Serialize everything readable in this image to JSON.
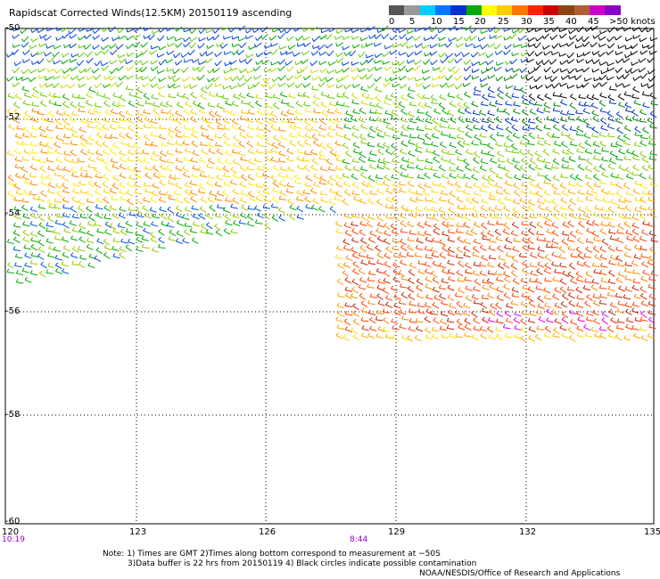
{
  "title": "Rapidscat Corrected Winds(12.5KM) 20150119 ascending",
  "legend": {
    "colors": [
      "#555555",
      "#9a9a9a",
      "#00ccff",
      "#0077ff",
      "#0033cc",
      "#00aa00",
      "#ffff00",
      "#ffcc00",
      "#ff7700",
      "#ff2200",
      "#cc0000",
      "#8b4513",
      "#b06030",
      "#cc00cc",
      "#8800cc"
    ],
    "labels": [
      "0",
      "5",
      "10",
      "15",
      "20",
      "25",
      "30",
      "35",
      "40",
      "45",
      ">50 knots"
    ]
  },
  "axes": {
    "lat_labels": [
      "-50",
      "-52",
      "-54",
      "-56",
      "-58",
      "-60"
    ],
    "lon_labels": [
      "120",
      "123",
      "126",
      "129",
      "132",
      "135"
    ],
    "time_labels": [
      "10:19",
      "8:44"
    ]
  },
  "notes": {
    "line1": "Note: 1) Times are GMT 2)Times along bottom correspond to measurement at −50S",
    "line2": "3)Data buffer is 22 hrs from 20150119 4) Black circles indicate possible contamination",
    "credit": "NOAA/NESDIS/Office of Research and Applications"
  }
}
